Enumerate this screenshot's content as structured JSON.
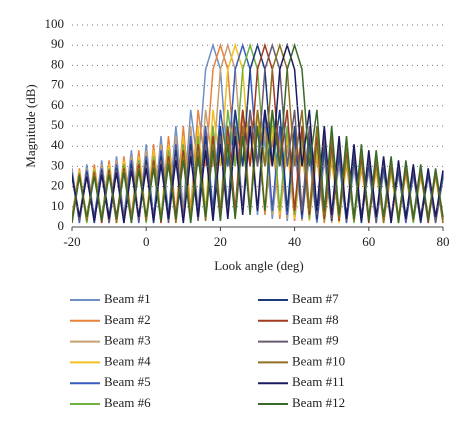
{
  "chart_data": {
    "type": "line",
    "x_label": "Look angle (deg)",
    "y_label": "Magnitude (dB)",
    "xlim": [
      -20,
      80
    ],
    "xticks": [
      -20,
      0,
      20,
      40,
      60,
      80
    ],
    "ylim": [
      0,
      100
    ],
    "yticks": [
      0,
      10,
      20,
      30,
      40,
      50,
      60,
      70,
      80,
      90,
      100
    ],
    "grid": "dotted",
    "legend": "below",
    "x": [
      -20,
      -18,
      -16,
      -14,
      -12,
      -10,
      -8,
      -6,
      -4,
      -2,
      0,
      2,
      4,
      6,
      8,
      10,
      12,
      14,
      16,
      18,
      20,
      22,
      24,
      26,
      28,
      30,
      32,
      34,
      36,
      38,
      40,
      42,
      44,
      46,
      48,
      50,
      52,
      54,
      56,
      58,
      60,
      62,
      64,
      66,
      68,
      70,
      72,
      74,
      76,
      78,
      80
    ],
    "series": [
      {
        "name": "Beam #1",
        "color": "#6f8fc8",
        "values": [
          29,
          3,
          31,
          4,
          33,
          2,
          35,
          5,
          38,
          3,
          41,
          4,
          45,
          6,
          50,
          8,
          58,
          30,
          78,
          90,
          78,
          30,
          58,
          8,
          50,
          6,
          45,
          4,
          41,
          3,
          38,
          5,
          35,
          2,
          33,
          4,
          31,
          3,
          29,
          5,
          28,
          2,
          27,
          4,
          26,
          3,
          25,
          5,
          25,
          2,
          24
        ]
      },
      {
        "name": "Beam #2",
        "color": "#e8823a",
        "values": [
          5,
          29,
          3,
          31,
          4,
          33,
          2,
          35,
          5,
          38,
          3,
          41,
          4,
          45,
          6,
          50,
          8,
          58,
          30,
          78,
          90,
          78,
          30,
          58,
          8,
          50,
          6,
          45,
          4,
          41,
          3,
          38,
          5,
          35,
          2,
          33,
          4,
          31,
          3,
          29,
          5,
          28,
          2,
          27,
          4,
          26,
          3,
          25,
          5,
          25,
          2
        ]
      },
      {
        "name": "Beam #3",
        "color": "#c8a070",
        "values": [
          28,
          5,
          29,
          3,
          31,
          4,
          33,
          2,
          35,
          5,
          38,
          3,
          41,
          4,
          45,
          6,
          50,
          8,
          58,
          30,
          78,
          90,
          78,
          30,
          58,
          8,
          50,
          6,
          45,
          4,
          41,
          3,
          38,
          5,
          35,
          2,
          33,
          4,
          31,
          3,
          29,
          5,
          28,
          2,
          27,
          4,
          26,
          3,
          25,
          5,
          25
        ]
      },
      {
        "name": "Beam #4",
        "color": "#f0c020",
        "values": [
          2,
          28,
          5,
          29,
          3,
          31,
          4,
          33,
          2,
          35,
          5,
          38,
          3,
          41,
          4,
          45,
          6,
          50,
          8,
          58,
          30,
          78,
          90,
          78,
          30,
          58,
          8,
          50,
          6,
          45,
          4,
          41,
          3,
          38,
          5,
          35,
          2,
          33,
          4,
          31,
          3,
          29,
          5,
          28,
          2,
          27,
          4,
          26,
          3,
          25,
          5
        ]
      },
      {
        "name": "Beam #5",
        "color": "#3a5cc0",
        "values": [
          27,
          2,
          28,
          5,
          29,
          3,
          31,
          4,
          33,
          2,
          35,
          5,
          38,
          3,
          41,
          4,
          45,
          6,
          50,
          8,
          58,
          30,
          78,
          90,
          78,
          30,
          58,
          8,
          50,
          6,
          45,
          4,
          41,
          3,
          38,
          5,
          35,
          2,
          33,
          4,
          31,
          3,
          29,
          5,
          28,
          2,
          27,
          4,
          26,
          3,
          25
        ]
      },
      {
        "name": "Beam #6",
        "color": "#70b040",
        "values": [
          4,
          27,
          2,
          28,
          5,
          29,
          3,
          31,
          4,
          33,
          2,
          35,
          5,
          38,
          3,
          41,
          4,
          45,
          6,
          50,
          8,
          58,
          30,
          78,
          90,
          78,
          30,
          58,
          8,
          50,
          6,
          45,
          4,
          41,
          3,
          38,
          5,
          35,
          2,
          33,
          4,
          31,
          3,
          29,
          5,
          28,
          2,
          27,
          4,
          26,
          3
        ]
      },
      {
        "name": "Beam #7",
        "color": "#1a3a7a",
        "values": [
          26,
          4,
          27,
          2,
          28,
          5,
          29,
          3,
          31,
          4,
          33,
          2,
          35,
          5,
          38,
          3,
          41,
          4,
          45,
          6,
          50,
          8,
          58,
          30,
          78,
          90,
          78,
          30,
          58,
          8,
          50,
          6,
          45,
          4,
          41,
          3,
          38,
          5,
          35,
          2,
          33,
          4,
          31,
          3,
          29,
          5,
          28,
          2,
          27,
          4,
          26
        ]
      },
      {
        "name": "Beam #8",
        "color": "#a03a20",
        "values": [
          3,
          26,
          4,
          27,
          2,
          28,
          5,
          29,
          3,
          31,
          4,
          33,
          2,
          35,
          5,
          38,
          3,
          41,
          4,
          45,
          6,
          50,
          8,
          58,
          30,
          78,
          90,
          78,
          30,
          58,
          8,
          50,
          6,
          45,
          4,
          41,
          3,
          38,
          5,
          35,
          2,
          33,
          4,
          31,
          3,
          29,
          5,
          28,
          2,
          27,
          4
        ]
      },
      {
        "name": "Beam #9",
        "color": "#6a5a70",
        "values": [
          25,
          3,
          26,
          4,
          27,
          2,
          28,
          5,
          29,
          3,
          31,
          4,
          33,
          2,
          35,
          5,
          38,
          3,
          41,
          4,
          45,
          6,
          50,
          8,
          58,
          30,
          78,
          90,
          78,
          30,
          58,
          8,
          50,
          6,
          45,
          4,
          41,
          3,
          38,
          5,
          35,
          2,
          33,
          4,
          31,
          3,
          29,
          5,
          28,
          2,
          27
        ]
      },
      {
        "name": "Beam #10",
        "color": "#907020",
        "values": [
          5,
          25,
          3,
          26,
          4,
          27,
          2,
          28,
          5,
          29,
          3,
          31,
          4,
          33,
          2,
          35,
          5,
          38,
          3,
          41,
          4,
          45,
          6,
          50,
          8,
          58,
          30,
          78,
          90,
          78,
          30,
          58,
          8,
          50,
          6,
          45,
          4,
          41,
          3,
          38,
          5,
          35,
          2,
          33,
          4,
          31,
          3,
          29,
          5,
          28,
          2
        ]
      },
      {
        "name": "Beam #11",
        "color": "#1a1a60",
        "values": [
          25,
          5,
          25,
          3,
          26,
          4,
          27,
          2,
          28,
          5,
          29,
          3,
          31,
          4,
          33,
          2,
          35,
          5,
          38,
          3,
          41,
          4,
          45,
          6,
          50,
          8,
          58,
          30,
          78,
          90,
          78,
          30,
          58,
          8,
          50,
          6,
          45,
          4,
          41,
          3,
          38,
          5,
          35,
          2,
          33,
          4,
          31,
          3,
          29,
          5,
          28
        ]
      },
      {
        "name": "Beam #12",
        "color": "#3a6a2a",
        "values": [
          2,
          25,
          5,
          25,
          3,
          26,
          4,
          27,
          2,
          28,
          5,
          29,
          3,
          31,
          4,
          33,
          2,
          35,
          5,
          38,
          3,
          41,
          4,
          45,
          6,
          50,
          8,
          58,
          30,
          78,
          90,
          78,
          30,
          58,
          8,
          50,
          6,
          45,
          4,
          41,
          3,
          38,
          5,
          35,
          2,
          33,
          4,
          31,
          3,
          29,
          5
        ]
      }
    ]
  }
}
